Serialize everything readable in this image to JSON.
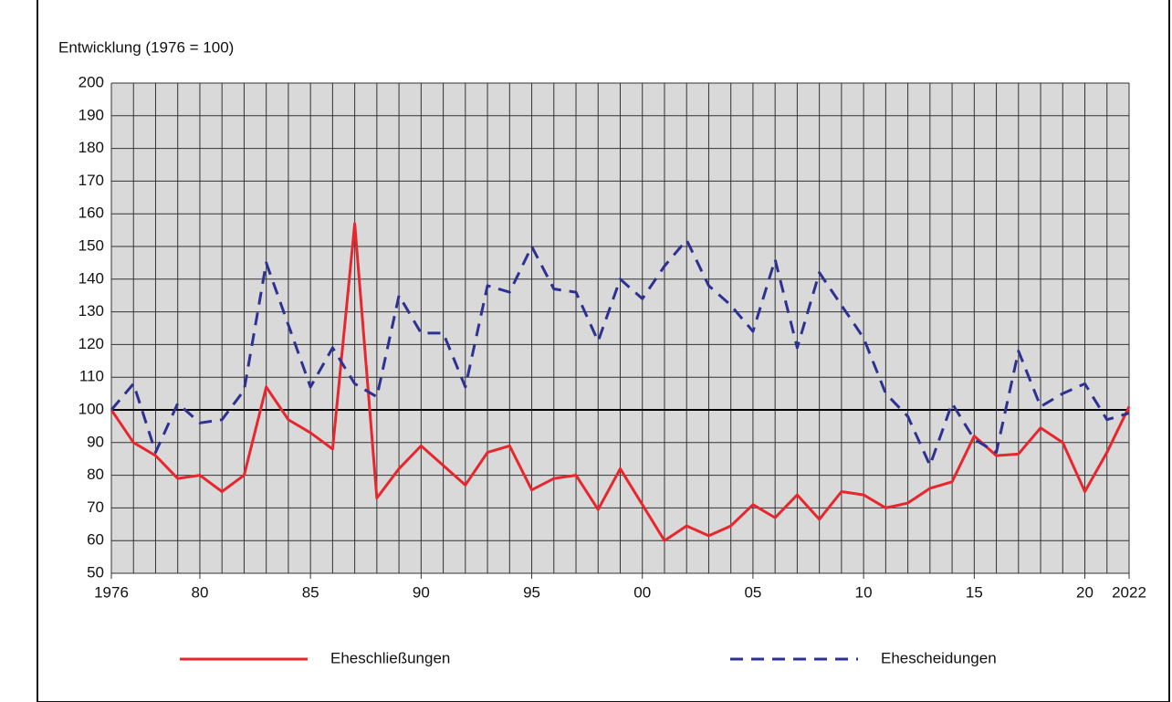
{
  "chart_data": {
    "type": "line",
    "y_axis_label": "Entwicklung (1976 = 100)",
    "x": [
      1976,
      1977,
      1978,
      1979,
      1980,
      1981,
      1982,
      1983,
      1984,
      1985,
      1986,
      1987,
      1988,
      1989,
      1990,
      1991,
      1992,
      1993,
      1994,
      1995,
      1996,
      1997,
      1998,
      1999,
      2000,
      2001,
      2002,
      2003,
      2004,
      2005,
      2006,
      2007,
      2008,
      2009,
      2010,
      2011,
      2012,
      2013,
      2014,
      2015,
      2016,
      2017,
      2018,
      2019,
      2020,
      2021,
      2022
    ],
    "series": [
      {
        "name": "Eheschließungen",
        "color": "#e8262d",
        "dash": false,
        "values": [
          100,
          90,
          86,
          79,
          80,
          75,
          80,
          107,
          97,
          93,
          88,
          157,
          73,
          82,
          89,
          83,
          77,
          87,
          89,
          75.5,
          79,
          80,
          69.5,
          82,
          71,
          60,
          64.5,
          61.5,
          64.5,
          71,
          67,
          74,
          66.5,
          75,
          74,
          70,
          71.5,
          76,
          78,
          92,
          86,
          86.5,
          94.5,
          90,
          75,
          87,
          101
        ]
      },
      {
        "name": "Ehescheidungen",
        "color": "#2e3192",
        "dash": true,
        "values": [
          100,
          108,
          87,
          102,
          96,
          97,
          106,
          145,
          126,
          107,
          119,
          108,
          104,
          135,
          123.5,
          123.5,
          107,
          138,
          136,
          150,
          137,
          136,
          121,
          140,
          134,
          144,
          152,
          138,
          132,
          124,
          146,
          119,
          142,
          132,
          122,
          105,
          98,
          83,
          102,
          91,
          87,
          118,
          101,
          105,
          108,
          97,
          99
        ]
      }
    ],
    "xlim": [
      1976,
      2022
    ],
    "xticks": [
      1976,
      {
        "value": 1980,
        "label": "80"
      },
      {
        "value": 1985,
        "label": "85"
      },
      {
        "value": 1990,
        "label": "90"
      },
      {
        "value": 1995,
        "label": "95"
      },
      {
        "value": 2000,
        "label": "00"
      },
      {
        "value": 2005,
        "label": "05"
      },
      {
        "value": 2010,
        "label": "10"
      },
      {
        "value": 2015,
        "label": "15"
      },
      {
        "value": 2020,
        "label": "20"
      },
      2022
    ],
    "ylim": [
      50,
      200
    ],
    "yticks": [
      50,
      60,
      70,
      80,
      90,
      100,
      110,
      120,
      130,
      140,
      150,
      160,
      170,
      180,
      190,
      200
    ],
    "reference_line": 100,
    "grid": true
  }
}
